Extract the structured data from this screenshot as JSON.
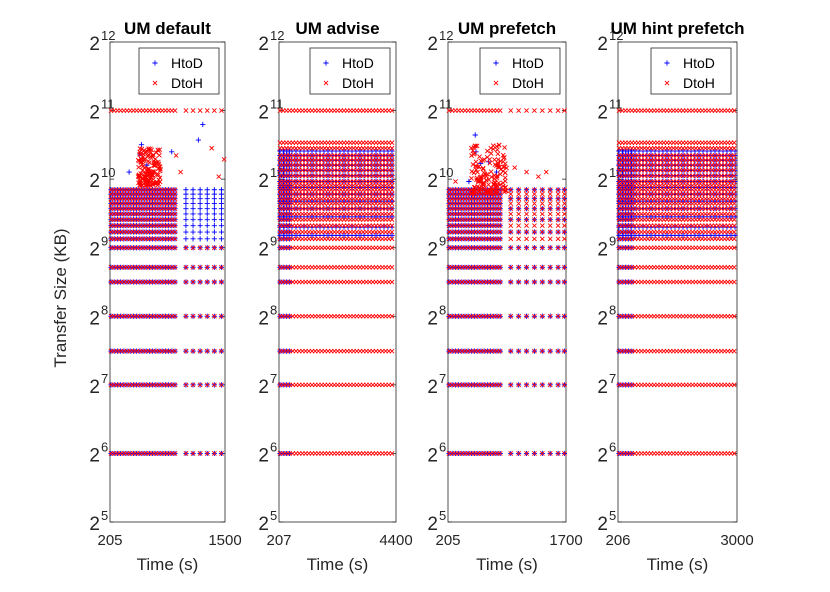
{
  "figure": {
    "ylabel": "Transfer Size (KB)",
    "yticks": [
      {
        "exp": 5,
        "label": "2",
        "sup": "5"
      },
      {
        "exp": 6,
        "label": "2",
        "sup": "6"
      },
      {
        "exp": 7,
        "label": "2",
        "sup": "7"
      },
      {
        "exp": 8,
        "label": "2",
        "sup": "8"
      },
      {
        "exp": 9,
        "label": "2",
        "sup": "9"
      },
      {
        "exp": 10,
        "label": "2",
        "sup": "10"
      },
      {
        "exp": 11,
        "label": "2",
        "sup": "11"
      },
      {
        "exp": 12,
        "label": "2",
        "sup": "12"
      }
    ],
    "colors": {
      "HtoD": "#0000ff",
      "DtoH": "#ff0000",
      "axis": "#262626"
    }
  },
  "chart_data": [
    {
      "type": "scatter",
      "title": "UM default",
      "xlabel": "Time (s)",
      "xlim": [
        205,
        1500
      ],
      "xticks": [
        "205",
        "1500"
      ],
      "yscale": "log2",
      "ylim": [
        32,
        4096
      ],
      "legend": {
        "position": "top-right",
        "entries": [
          "HtoD",
          "DtoH"
        ]
      },
      "series": [
        {
          "name": "HtoD",
          "marker": "+",
          "color": "#0000ff",
          "dense_range": [
            205,
            980
          ],
          "levels_kb": [
            64,
            128,
            180,
            256,
            362,
            420,
            512,
            560,
            600,
            640,
            680,
            720,
            760,
            800,
            840,
            880,
            920
          ],
          "sparse_x": [
            1060,
            1140,
            1220,
            1300,
            1380,
            1460
          ],
          "sparse_levels_kb": [
            64,
            128,
            180,
            256,
            362,
            420,
            512,
            560,
            600,
            640,
            680,
            720,
            760,
            800,
            840,
            880,
            920
          ],
          "outliers": [
            [
              560,
              1450
            ],
            [
              620,
              1180
            ],
            [
              540,
              1320
            ],
            [
              1250,
              1780
            ],
            [
              1200,
              1520
            ],
            [
              900,
              1350
            ],
            [
              420,
              1100
            ]
          ]
        },
        {
          "name": "DtoH",
          "marker": "x",
          "color": "#ff0000",
          "dense_range": [
            205,
            980
          ],
          "levels_kb": [
            64,
            128,
            180,
            256,
            362,
            420,
            512,
            560,
            600,
            640,
            680,
            720,
            760,
            800,
            840,
            880,
            920,
            2048
          ],
          "sparse_x": [
            1060,
            1140,
            1220,
            1300,
            1380,
            1460
          ],
          "sparse_levels_kb": [
            64,
            128,
            180,
            256,
            362,
            420,
            512,
            2048
          ],
          "cluster": {
            "x_range": [
              520,
              780
            ],
            "kb_range": [
              960,
              1400
            ]
          },
          "outliers": [
            [
              1490,
              1250
            ],
            [
              1430,
              1050
            ],
            [
              1000,
              1100
            ],
            [
              950,
              1300
            ],
            [
              1350,
              1400
            ]
          ]
        }
      ]
    },
    {
      "type": "scatter",
      "title": "UM advise",
      "xlabel": "Time (s)",
      "xlim": [
        207,
        4400
      ],
      "xticks": [
        "207",
        "4400"
      ],
      "yscale": "log2",
      "ylim": [
        32,
        4096
      ],
      "legend": {
        "position": "top-right",
        "entries": [
          "HtoD",
          "DtoH"
        ]
      },
      "series": [
        {
          "name": "HtoD",
          "marker": "+",
          "color": "#0000ff",
          "dense_range": [
            207,
            720
          ],
          "levels_kb": [
            64,
            128,
            180,
            256,
            362,
            420,
            512,
            560,
            600,
            640,
            680,
            720,
            760,
            800,
            840,
            880,
            920,
            960,
            1000,
            1060,
            1120,
            1180,
            1240,
            1300,
            1360
          ],
          "sparse_x": [],
          "sparse_levels_kb": [],
          "grid_x_step": 70,
          "grid_kb": [
            580,
            630,
            700,
            760,
            820,
            880,
            940,
            1000,
            1060,
            1120,
            1180,
            1240,
            1300,
            1360
          ],
          "outliers": []
        },
        {
          "name": "DtoH",
          "marker": "x",
          "color": "#ff0000",
          "dense_range": [
            207,
            4400
          ],
          "levels_kb": [
            64,
            128,
            180,
            256,
            362,
            420,
            512,
            560,
            600,
            640,
            680,
            720,
            760,
            800,
            840,
            880,
            920,
            960,
            1000,
            1060,
            1120,
            1180,
            1240,
            1300,
            1400,
            1480,
            2048
          ],
          "sparse_x": [],
          "sparse_levels_kb": [],
          "outliers": []
        }
      ]
    },
    {
      "type": "scatter",
      "title": "UM prefetch",
      "xlabel": "Time (s)",
      "xlim": [
        205,
        1700
      ],
      "xticks": [
        "205",
        "1700"
      ],
      "yscale": "log2",
      "ylim": [
        32,
        4096
      ],
      "legend": {
        "position": "top-right",
        "entries": [
          "HtoD",
          "DtoH"
        ]
      },
      "series": [
        {
          "name": "HtoD",
          "marker": "+",
          "color": "#0000ff",
          "dense_range": [
            205,
            900
          ],
          "levels_kb": [
            64,
            128,
            180,
            256,
            362,
            420,
            512,
            560,
            600,
            640,
            680,
            720,
            760,
            800,
            840,
            880,
            920
          ],
          "sparse_x": [
            1000,
            1100,
            1200,
            1300,
            1400,
            1500,
            1600,
            1680
          ],
          "sparse_levels_kb": [
            64,
            128,
            180,
            256,
            362,
            420,
            512,
            600,
            680,
            760,
            840,
            920
          ],
          "outliers": [
            [
              550,
              1600
            ],
            [
              560,
              1350
            ],
            [
              620,
              1200
            ],
            [
              470,
              1000
            ],
            [
              820,
              1100
            ],
            [
              720,
              1220
            ]
          ]
        },
        {
          "name": "DtoH",
          "marker": "x",
          "color": "#ff0000",
          "dense_range": [
            205,
            900
          ],
          "levels_kb": [
            64,
            128,
            180,
            256,
            362,
            420,
            512,
            560,
            600,
            640,
            680,
            720,
            760,
            800,
            840,
            880,
            920,
            2048
          ],
          "sparse_x": [
            1000,
            1100,
            1200,
            1300,
            1400,
            1500,
            1600,
            1680
          ],
          "sparse_levels_kb": [
            64,
            128,
            180,
            256,
            362,
            420,
            512,
            560,
            600,
            640,
            680,
            720,
            760,
            800,
            840,
            880,
            920,
            2048
          ],
          "cluster": {
            "x_range": [
              500,
              950
            ],
            "kb_range": [
              880,
              1450
            ]
          },
          "outliers": [
            [
              1050,
              1150
            ],
            [
              1200,
              1100
            ],
            [
              1350,
              1050
            ],
            [
              1450,
              1100
            ],
            [
              300,
              1000
            ]
          ]
        }
      ]
    },
    {
      "type": "scatter",
      "title": "UM hint prefetch",
      "xlabel": "Time (s)",
      "xlim": [
        206,
        3000
      ],
      "xticks": [
        "206",
        "3000"
      ],
      "yscale": "log2",
      "ylim": [
        32,
        4096
      ],
      "legend": {
        "position": "top-right",
        "entries": [
          "HtoD",
          "DtoH"
        ]
      },
      "series": [
        {
          "name": "HtoD",
          "marker": "+",
          "color": "#0000ff",
          "dense_range": [
            206,
            600
          ],
          "levels_kb": [
            64,
            128,
            180,
            256,
            362,
            420,
            512,
            560,
            600,
            640,
            680,
            720,
            760,
            800,
            840,
            880,
            920,
            960,
            1000,
            1060,
            1120,
            1180,
            1240,
            1300,
            1360
          ],
          "sparse_x": [],
          "sparse_levels_kb": [],
          "grid_x_step": 40,
          "grid_kb": [
            580,
            630,
            700,
            760,
            820,
            880,
            940,
            1000,
            1060,
            1120,
            1180,
            1240,
            1300,
            1360
          ],
          "outliers": []
        },
        {
          "name": "DtoH",
          "marker": "x",
          "color": "#ff0000",
          "dense_range": [
            206,
            3000
          ],
          "levels_kb": [
            64,
            128,
            180,
            256,
            362,
            420,
            512,
            560,
            600,
            640,
            680,
            720,
            760,
            800,
            840,
            880,
            920,
            960,
            1000,
            1060,
            1120,
            1180,
            1240,
            1300,
            1400,
            1480,
            2048
          ],
          "sparse_x": [],
          "sparse_levels_kb": [],
          "outliers": []
        }
      ]
    }
  ]
}
